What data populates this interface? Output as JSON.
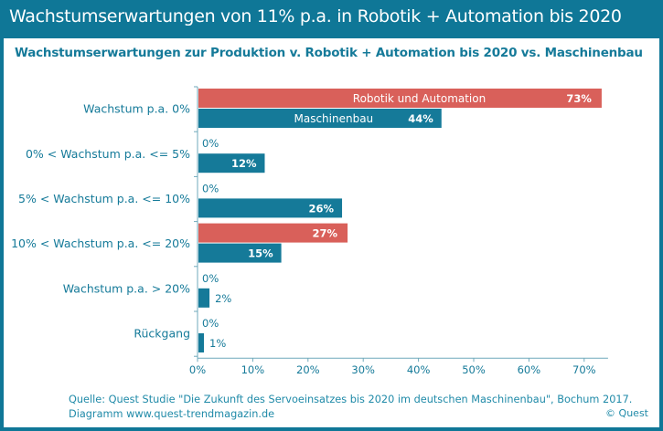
{
  "header": {
    "title": "Wachstumserwartungen von 11% p.a.  in Robotik + Automation bis 2020"
  },
  "colors": {
    "frame": "#0f7797",
    "robotik": "#d9605a",
    "maschinenbau": "#157a99",
    "text": "#157a99"
  },
  "footer": {
    "source_line": "Quelle: Quest Studie \"Die Zukunft des Servoeinsatzes bis 2020 im  deutschen Maschinenbau\", Bochum 2017.",
    "diagram_line": "Diagramm  www.quest-trendmagazin.de",
    "copyright": "© Quest"
  },
  "chart_data": {
    "type": "bar",
    "orientation": "horizontal",
    "title": "Wachstumserwartungen zur Produktion v. Robotik + Automation bis 2020 vs. Maschinenbau",
    "categories": [
      "Wachstum p.a. 0%",
      "0% < Wachstum p.a. <= 5%",
      "5% < Wachstum p.a. <= 10%",
      "10% < Wachstum p.a. <= 20%",
      "Wachstum p.a. > 20%",
      "Rückgang"
    ],
    "series": [
      {
        "name": "Robotik und Automation",
        "values": [
          73,
          0,
          0,
          27,
          0,
          0
        ],
        "labels": [
          "73%",
          "0%",
          "0%",
          "27%",
          "0%",
          "0%"
        ]
      },
      {
        "name": "Maschinenbau",
        "values": [
          44,
          12,
          26,
          15,
          2,
          1
        ],
        "labels": [
          "44%",
          "12%",
          "26%",
          "15%",
          "2%",
          "1%"
        ]
      }
    ],
    "xlim": [
      0,
      73
    ],
    "xticks": [
      "0%",
      "10%",
      "20%",
      "30%",
      "40%",
      "50%",
      "60%",
      "70%"
    ],
    "xtick_values": [
      0,
      10,
      20,
      30,
      40,
      50,
      60,
      70
    ],
    "xlabel": "",
    "ylabel": "",
    "grid": false,
    "legend": "inside-bars"
  }
}
